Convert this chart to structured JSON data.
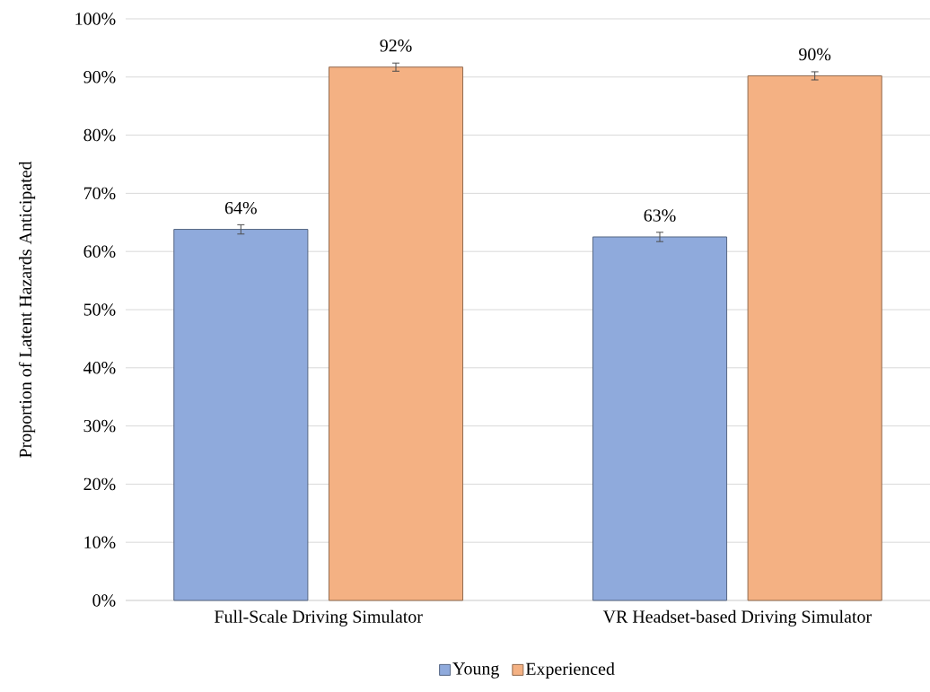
{
  "chart_data": {
    "type": "bar",
    "ylabel": "Proportion of Latent Hazards Anticipated",
    "categories": [
      "Full-Scale Driving Simulator",
      "VR Headset-based Driving Simulator"
    ],
    "series": [
      {
        "name": "Young",
        "color": "#8faadc",
        "values": [
          63.8,
          62.5
        ],
        "errors": [
          0.8,
          0.8
        ],
        "value_labels": [
          "64%",
          "63%"
        ]
      },
      {
        "name": "Experienced",
        "color": "#f4b183",
        "values": [
          91.7,
          90.2
        ],
        "errors": [
          0.7,
          0.7
        ],
        "value_labels": [
          "92%",
          "90%"
        ]
      }
    ],
    "ylim": [
      0,
      100
    ],
    "yticks": [
      {
        "value": 0,
        "label": "0%"
      },
      {
        "value": 10,
        "label": "10%"
      },
      {
        "value": 20,
        "label": "20%"
      },
      {
        "value": 30,
        "label": "30%"
      },
      {
        "value": 40,
        "label": "40%"
      },
      {
        "value": 50,
        "label": "50%"
      },
      {
        "value": 60,
        "label": "60%"
      },
      {
        "value": 70,
        "label": "70%"
      },
      {
        "value": 80,
        "label": "80%"
      },
      {
        "value": 90,
        "label": "90%"
      },
      {
        "value": 100,
        "label": "100%"
      }
    ],
    "grid": "y",
    "legend": "bottom"
  }
}
